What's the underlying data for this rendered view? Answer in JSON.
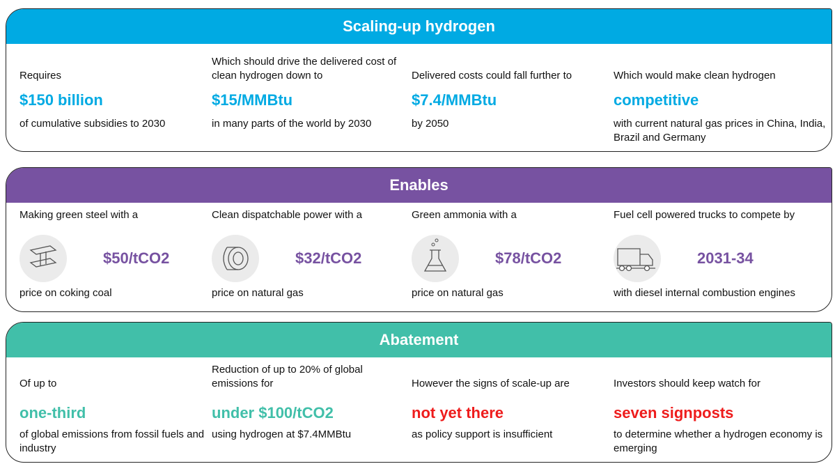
{
  "panels": [
    {
      "title": "Scaling-up hydrogen",
      "color": "#00aae3",
      "value_color": "#00aae3",
      "columns": [
        {
          "intro": "Requires",
          "value": "$150 billion",
          "detail": "of cumulative subsidies to 2030"
        },
        {
          "intro": "Which should drive the delivered cost of clean hydrogen down to",
          "value": "$15/MMBtu",
          "detail": "in many parts of the world by 2030"
        },
        {
          "intro": "Delivered costs could fall further to",
          "value": "$7.4/MMBtu",
          "detail": "by 2050"
        },
        {
          "intro": "Which would make clean hydrogen",
          "value": "competitive",
          "detail": "with current natural gas prices in China, India, Brazil and Germany"
        }
      ]
    },
    {
      "title": "Enables",
      "color": "#7752a1",
      "value_color": "#7752a1",
      "columns": [
        {
          "intro": "Making green steel with a",
          "value": "$50/tCO2",
          "detail": "price on coking coal"
        },
        {
          "intro": "Clean dispatchable power with a",
          "value": "$32/tCO2",
          "detail": "price on natural gas"
        },
        {
          "intro": "Green ammonia with a",
          "value": "$78/tCO2",
          "detail": "price on natural gas"
        },
        {
          "intro": "Fuel cell powered trucks to compete by",
          "value": "2031-34",
          "detail": "with diesel internal combustion engines"
        }
      ]
    },
    {
      "title": "Abatement",
      "color": "#41bfa9",
      "columns": [
        {
          "intro": "Of up to",
          "value": "one-third",
          "detail": "of global emissions from fossil fuels and industry",
          "value_color": "#41bfa9"
        },
        {
          "intro": "Reduction of up to 20% of global emissions for",
          "value": "under $100/tCO2",
          "detail": "using hydrogen at $7.4MMBtu",
          "value_color": "#41bfa9"
        },
        {
          "intro": "However the signs of scale-up are",
          "value": "not yet there",
          "detail": "as policy support is insufficient",
          "value_color": "#ee1c1c"
        },
        {
          "intro": "Investors should keep watch for",
          "value": "seven signposts",
          "detail": "to determine whether a hydrogen economy is emerging",
          "value_color": "#ee1c1c"
        }
      ]
    }
  ]
}
